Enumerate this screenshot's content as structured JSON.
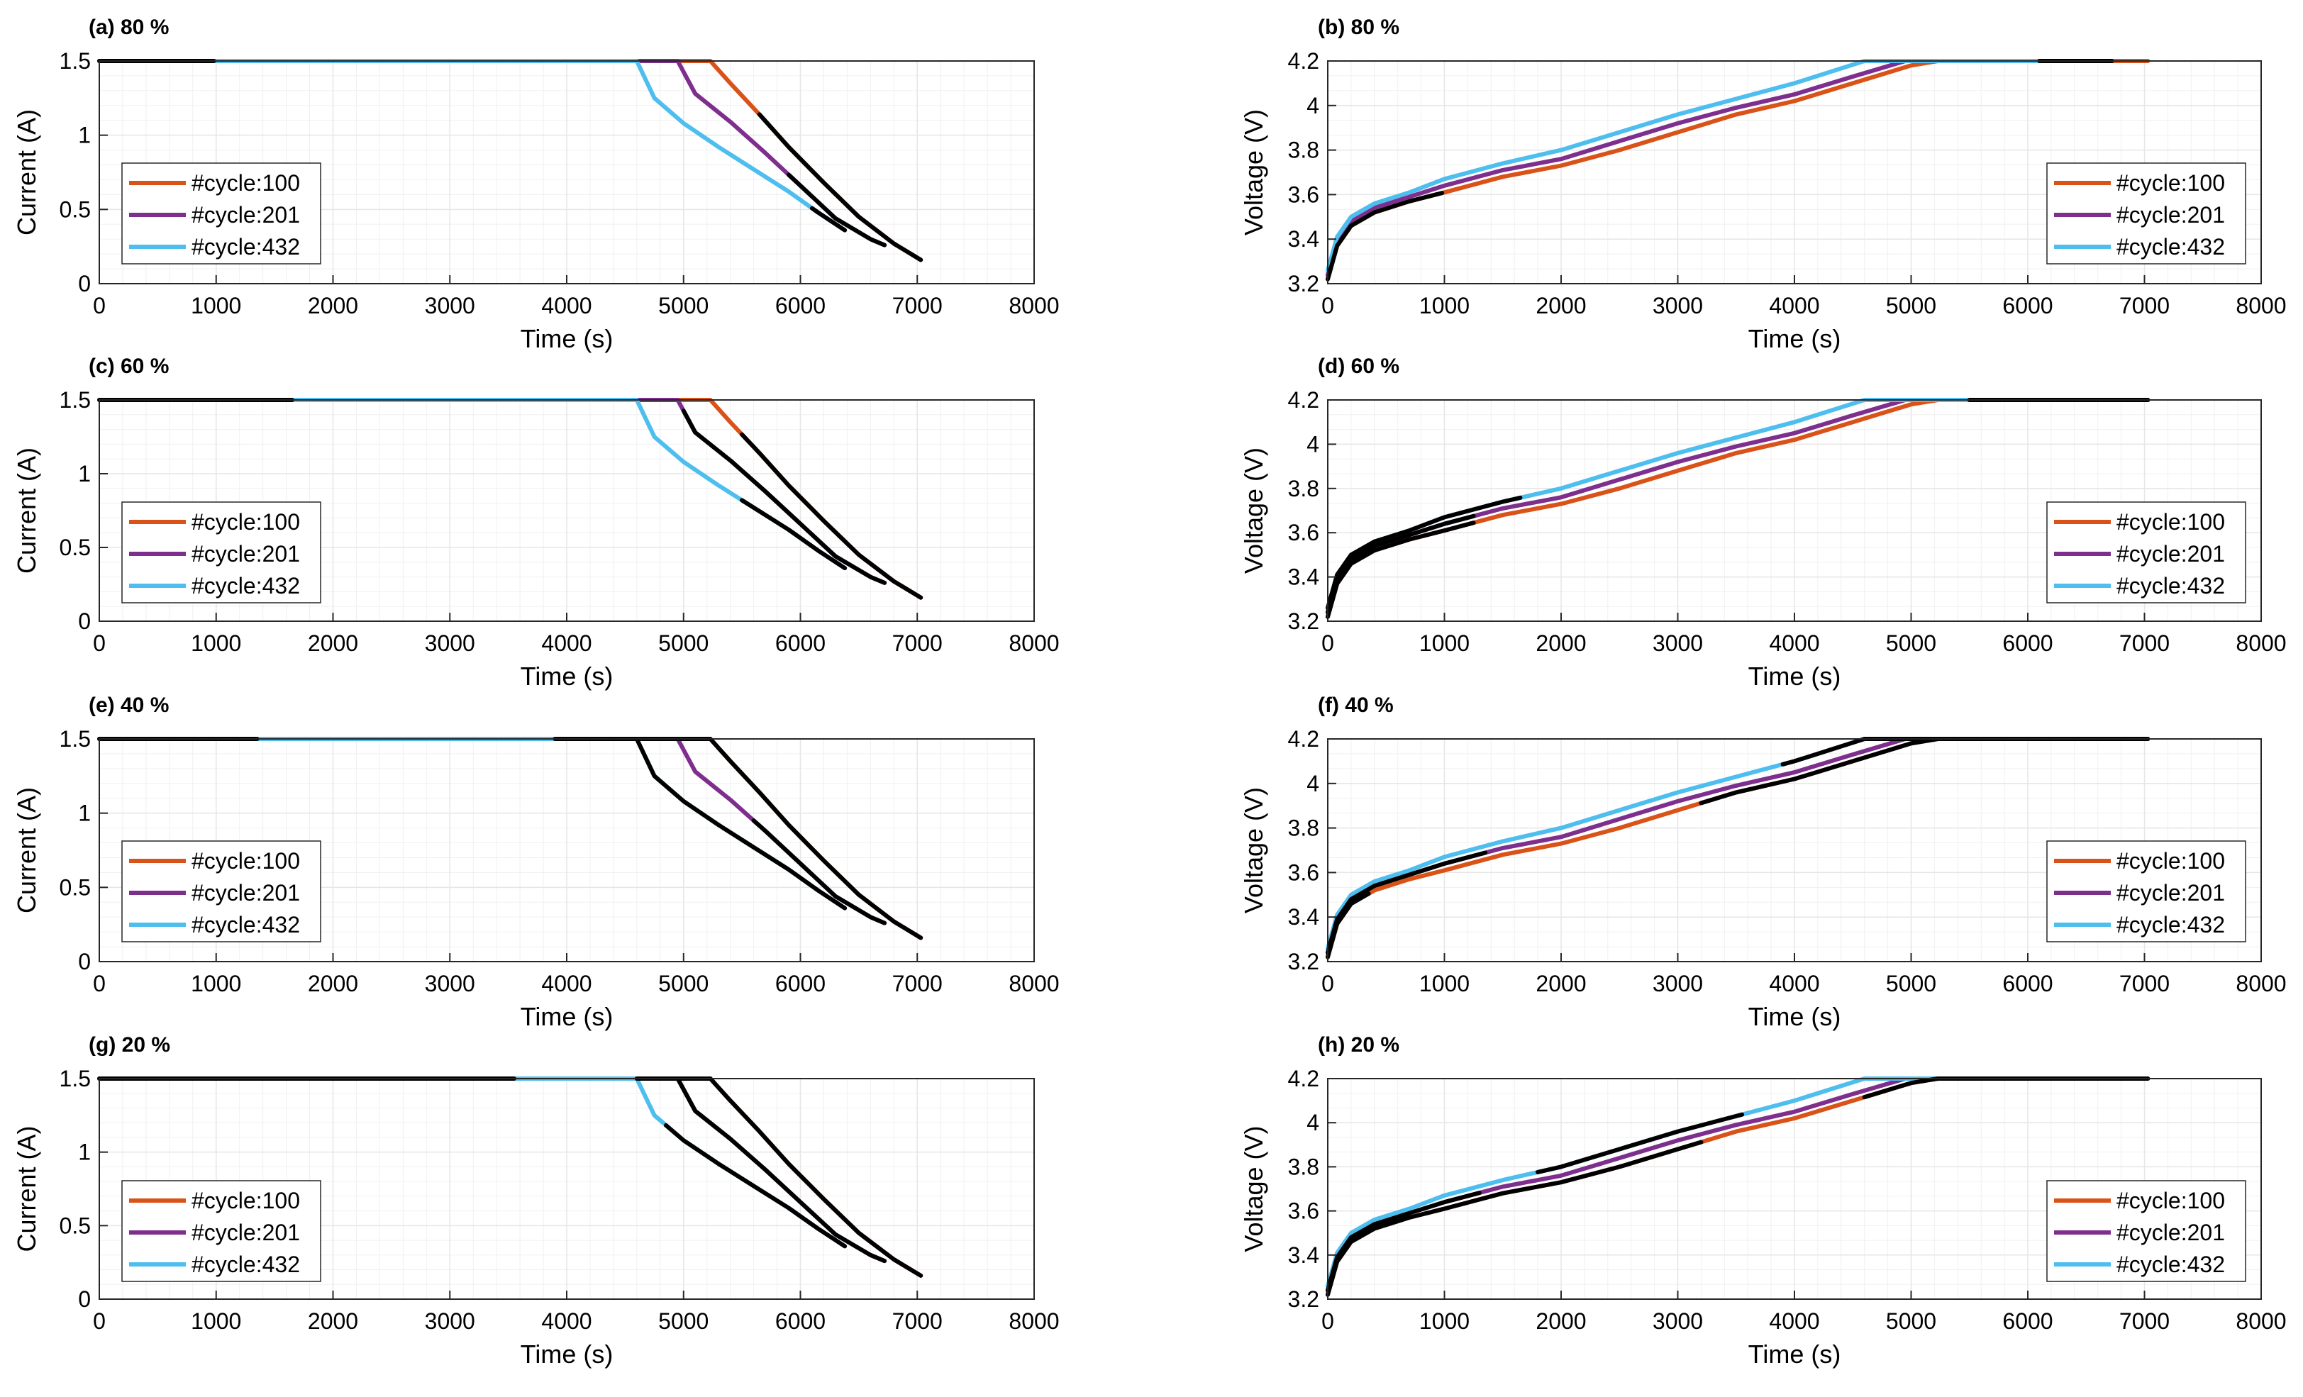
{
  "figure": {
    "legend_labels": [
      "#cycle:100",
      "#cycle:201",
      "#cycle:432"
    ],
    "colors": {
      "cycle100": "#D95319",
      "cycle201": "#7E2F8E",
      "cycle432": "#4DBEEE",
      "predicted": "#000000",
      "grid": "#e6e6e6",
      "axis": "#262626"
    }
  },
  "chart_data": [
    {
      "panel": "a",
      "title": "(a) 80 %",
      "type": "line",
      "xlabel": "Time (s)",
      "ylabel": "Current (A)",
      "xlim": [
        0,
        8000
      ],
      "ylim": [
        0,
        1.5
      ],
      "xticks": [
        0,
        1000,
        2000,
        3000,
        4000,
        5000,
        6000,
        7000,
        8000
      ],
      "yticks": [
        0,
        0.5,
        1,
        1.5
      ],
      "ytick_labels": [
        "0",
        "0.5",
        "1",
        "1.5"
      ],
      "legend": "center-left",
      "series": [
        {
          "name": "#cycle:100",
          "x": [
            0,
            5230,
            5400,
            5650,
            5900,
            6200,
            6500,
            6800,
            7030
          ],
          "y": [
            1.5,
            1.5,
            1.35,
            1.14,
            0.92,
            0.68,
            0.45,
            0.27,
            0.16
          ]
        },
        {
          "name": "#cycle:201",
          "x": [
            0,
            4950,
            5100,
            5400,
            5700,
            6000,
            6300,
            6600,
            6720
          ],
          "y": [
            1.5,
            1.5,
            1.28,
            1.09,
            0.88,
            0.66,
            0.44,
            0.3,
            0.26
          ]
        },
        {
          "name": "#cycle:432",
          "x": [
            0,
            4600,
            4750,
            5000,
            5300,
            5600,
            5900,
            6150,
            6380
          ],
          "y": [
            1.5,
            1.5,
            1.25,
            1.08,
            0.92,
            0.77,
            0.62,
            0.48,
            0.36
          ]
        }
      ],
      "predicted": [
        [
          0,
          980
        ],
        [
          5650,
          7030
        ],
        [
          5900,
          6720
        ],
        [
          6100,
          6380
        ]
      ]
    },
    {
      "panel": "b",
      "title": "(b) 80 %",
      "type": "line",
      "xlabel": "Time (s)",
      "ylabel": "Voltage (V)",
      "xlim": [
        0,
        8000
      ],
      "ylim": [
        3.2,
        4.2
      ],
      "xticks": [
        0,
        1000,
        2000,
        3000,
        4000,
        5000,
        6000,
        7000,
        8000
      ],
      "yticks": [
        3.2,
        3.4,
        3.6,
        3.8,
        4,
        4.2
      ],
      "ytick_labels": [
        "3.2",
        "3.4",
        "3.6",
        "3.8",
        "4",
        "4.2"
      ],
      "legend": "center-right",
      "series": [
        {
          "name": "#cycle:100",
          "x": [
            0,
            80,
            200,
            400,
            700,
            1000,
            1500,
            2000,
            2500,
            3000,
            3500,
            4000,
            4500,
            5000,
            5230,
            7030
          ],
          "y": [
            3.22,
            3.37,
            3.46,
            3.52,
            3.57,
            3.61,
            3.68,
            3.73,
            3.8,
            3.88,
            3.96,
            4.02,
            4.1,
            4.18,
            4.2,
            4.2
          ]
        },
        {
          "name": "#cycle:201",
          "x": [
            0,
            80,
            200,
            400,
            700,
            1000,
            1500,
            2000,
            2500,
            3000,
            3500,
            4000,
            4500,
            4950,
            6720
          ],
          "y": [
            3.24,
            3.39,
            3.48,
            3.54,
            3.59,
            3.64,
            3.71,
            3.76,
            3.84,
            3.92,
            3.99,
            4.05,
            4.13,
            4.2,
            4.2
          ]
        },
        {
          "name": "#cycle:432",
          "x": [
            0,
            80,
            200,
            400,
            700,
            1000,
            1500,
            2000,
            2500,
            3000,
            3500,
            4000,
            4600,
            6380
          ],
          "y": [
            3.26,
            3.41,
            3.5,
            3.56,
            3.61,
            3.67,
            3.74,
            3.8,
            3.88,
            3.96,
            4.03,
            4.1,
            4.2,
            4.2
          ]
        }
      ],
      "predicted": [
        [
          0,
          980
        ],
        [
          6100,
          6720
        ]
      ]
    },
    {
      "panel": "c",
      "title": "(c) 60 %",
      "type": "line",
      "xlabel": "Time (s)",
      "ylabel": "Current (A)",
      "xlim": [
        0,
        8000
      ],
      "ylim": [
        0,
        1.5
      ],
      "xticks": [
        0,
        1000,
        2000,
        3000,
        4000,
        5000,
        6000,
        7000,
        8000
      ],
      "yticks": [
        0,
        0.5,
        1,
        1.5
      ],
      "ytick_labels": [
        "0",
        "0.5",
        "1",
        "1.5"
      ],
      "legend": "center-left",
      "series": [
        {
          "name": "#cycle:100",
          "x": [
            0,
            5230,
            5400,
            5650,
            5900,
            6200,
            6500,
            6800,
            7030
          ],
          "y": [
            1.5,
            1.5,
            1.35,
            1.14,
            0.92,
            0.68,
            0.45,
            0.27,
            0.16
          ]
        },
        {
          "name": "#cycle:201",
          "x": [
            0,
            4950,
            5100,
            5400,
            5700,
            6000,
            6300,
            6600,
            6720
          ],
          "y": [
            1.5,
            1.5,
            1.28,
            1.09,
            0.88,
            0.66,
            0.44,
            0.3,
            0.26
          ]
        },
        {
          "name": "#cycle:432",
          "x": [
            0,
            4600,
            4750,
            5000,
            5300,
            5600,
            5900,
            6150,
            6380
          ],
          "y": [
            1.5,
            1.5,
            1.25,
            1.08,
            0.92,
            0.77,
            0.62,
            0.48,
            0.36
          ]
        }
      ],
      "predicted": [
        [
          0,
          1650
        ],
        [
          5500,
          7030
        ],
        [
          5000,
          6720
        ],
        [
          5500,
          6380
        ]
      ]
    },
    {
      "panel": "d",
      "title": "(d) 60 %",
      "type": "line",
      "xlabel": "Time (s)",
      "ylabel": "Voltage (V)",
      "xlim": [
        0,
        8000
      ],
      "ylim": [
        3.2,
        4.2
      ],
      "xticks": [
        0,
        1000,
        2000,
        3000,
        4000,
        5000,
        6000,
        7000,
        8000
      ],
      "yticks": [
        3.2,
        3.4,
        3.6,
        3.8,
        4,
        4.2
      ],
      "ytick_labels": [
        "3.2",
        "3.4",
        "3.6",
        "3.8",
        "4",
        "4.2"
      ],
      "legend": "center-right",
      "series": [
        {
          "name": "#cycle:100",
          "x": [
            0,
            80,
            200,
            400,
            700,
            1000,
            1500,
            2000,
            2500,
            3000,
            3500,
            4000,
            4500,
            5000,
            5230,
            7030
          ],
          "y": [
            3.22,
            3.37,
            3.46,
            3.52,
            3.57,
            3.61,
            3.68,
            3.73,
            3.8,
            3.88,
            3.96,
            4.02,
            4.1,
            4.18,
            4.2,
            4.2
          ]
        },
        {
          "name": "#cycle:201",
          "x": [
            0,
            80,
            200,
            400,
            700,
            1000,
            1500,
            2000,
            2500,
            3000,
            3500,
            4000,
            4500,
            4950,
            6720
          ],
          "y": [
            3.24,
            3.39,
            3.48,
            3.54,
            3.59,
            3.64,
            3.71,
            3.76,
            3.84,
            3.92,
            3.99,
            4.05,
            4.13,
            4.2,
            4.2
          ]
        },
        {
          "name": "#cycle:432",
          "x": [
            0,
            80,
            200,
            400,
            700,
            1000,
            1500,
            2000,
            2500,
            3000,
            3500,
            4000,
            4600,
            6380
          ],
          "y": [
            3.26,
            3.41,
            3.5,
            3.56,
            3.61,
            3.67,
            3.74,
            3.8,
            3.88,
            3.96,
            4.03,
            4.1,
            4.2,
            4.2
          ]
        }
      ],
      "predicted": [
        [
          0,
          1250
        ],
        [
          5500,
          7030
        ],
        [
          0,
          1250
        ],
        [
          0,
          1650
        ]
      ]
    },
    {
      "panel": "e",
      "title": "(e) 40 %",
      "type": "line",
      "xlabel": "Time (s)",
      "ylabel": "Current (A)",
      "xlim": [
        0,
        8000
      ],
      "ylim": [
        0,
        1.5
      ],
      "xticks": [
        0,
        1000,
        2000,
        3000,
        4000,
        5000,
        6000,
        7000,
        8000
      ],
      "yticks": [
        0,
        0.5,
        1,
        1.5
      ],
      "ytick_labels": [
        "0",
        "0.5",
        "1",
        "1.5"
      ],
      "legend": "center-left",
      "series": [
        {
          "name": "#cycle:100",
          "x": [
            0,
            5230,
            5400,
            5650,
            5900,
            6200,
            6500,
            6800,
            7030
          ],
          "y": [
            1.5,
            1.5,
            1.35,
            1.14,
            0.92,
            0.68,
            0.45,
            0.27,
            0.16
          ]
        },
        {
          "name": "#cycle:201",
          "x": [
            0,
            4950,
            5100,
            5400,
            5700,
            6000,
            6300,
            6600,
            6720
          ],
          "y": [
            1.5,
            1.5,
            1.28,
            1.09,
            0.88,
            0.66,
            0.44,
            0.3,
            0.26
          ]
        },
        {
          "name": "#cycle:432",
          "x": [
            0,
            4600,
            4750,
            5000,
            5300,
            5600,
            5900,
            6150,
            6380
          ],
          "y": [
            1.5,
            1.5,
            1.25,
            1.08,
            0.92,
            0.77,
            0.62,
            0.48,
            0.36
          ]
        }
      ],
      "predicted": [
        [
          0,
          1350
        ],
        [
          3900,
          7030
        ],
        [
          5600,
          6720
        ],
        [
          4600,
          6380
        ]
      ]
    },
    {
      "panel": "f",
      "title": "(f) 40 %",
      "type": "line",
      "xlabel": "Time (s)",
      "ylabel": "Voltage (V)",
      "xlim": [
        0,
        8000
      ],
      "ylim": [
        3.2,
        4.2
      ],
      "xticks": [
        0,
        1000,
        2000,
        3000,
        4000,
        5000,
        6000,
        7000,
        8000
      ],
      "yticks": [
        3.2,
        3.4,
        3.6,
        3.8,
        4,
        4.2
      ],
      "ytick_labels": [
        "3.2",
        "3.4",
        "3.6",
        "3.8",
        "4",
        "4.2"
      ],
      "legend": "center-right",
      "series": [
        {
          "name": "#cycle:100",
          "x": [
            0,
            80,
            200,
            400,
            700,
            1000,
            1500,
            2000,
            2500,
            3000,
            3500,
            4000,
            4500,
            5000,
            5230,
            7030
          ],
          "y": [
            3.22,
            3.37,
            3.46,
            3.52,
            3.57,
            3.61,
            3.68,
            3.73,
            3.8,
            3.88,
            3.96,
            4.02,
            4.1,
            4.18,
            4.2,
            4.2
          ]
        },
        {
          "name": "#cycle:201",
          "x": [
            0,
            80,
            200,
            400,
            700,
            1000,
            1500,
            2000,
            2500,
            3000,
            3500,
            4000,
            4500,
            4950,
            6720
          ],
          "y": [
            3.24,
            3.39,
            3.48,
            3.54,
            3.59,
            3.64,
            3.71,
            3.76,
            3.84,
            3.92,
            3.99,
            4.05,
            4.13,
            4.2,
            4.2
          ]
        },
        {
          "name": "#cycle:432",
          "x": [
            0,
            80,
            200,
            400,
            700,
            1000,
            1500,
            2000,
            2500,
            3000,
            3500,
            4000,
            4600,
            6380
          ],
          "y": [
            3.26,
            3.41,
            3.5,
            3.56,
            3.61,
            3.67,
            3.74,
            3.8,
            3.88,
            3.96,
            4.03,
            4.1,
            4.2,
            4.2
          ]
        }
      ],
      "predicted": [
        [
          0,
          350
        ],
        [
          3200,
          7030
        ],
        [
          0,
          1350
        ],
        [
          3900,
          6380
        ]
      ]
    },
    {
      "panel": "g",
      "title": "(g) 20 %",
      "type": "line",
      "xlabel": "Time (s)",
      "ylabel": "Current (A)",
      "xlim": [
        0,
        8000
      ],
      "ylim": [
        0,
        1.5
      ],
      "xticks": [
        0,
        1000,
        2000,
        3000,
        4000,
        5000,
        6000,
        7000,
        8000
      ],
      "yticks": [
        0,
        0.5,
        1,
        1.5
      ],
      "ytick_labels": [
        "0",
        "0.5",
        "1",
        "1.5"
      ],
      "legend": "center-left",
      "series": [
        {
          "name": "#cycle:100",
          "x": [
            0,
            5230,
            5400,
            5650,
            5900,
            6200,
            6500,
            6800,
            7030
          ],
          "y": [
            1.5,
            1.5,
            1.35,
            1.14,
            0.92,
            0.68,
            0.45,
            0.27,
            0.16
          ]
        },
        {
          "name": "#cycle:201",
          "x": [
            0,
            4950,
            5100,
            5400,
            5700,
            6000,
            6300,
            6600,
            6720
          ],
          "y": [
            1.5,
            1.5,
            1.28,
            1.09,
            0.88,
            0.66,
            0.44,
            0.3,
            0.26
          ]
        },
        {
          "name": "#cycle:432",
          "x": [
            0,
            4600,
            4750,
            5000,
            5300,
            5600,
            5900,
            6150,
            6380
          ],
          "y": [
            1.5,
            1.5,
            1.25,
            1.08,
            0.92,
            0.77,
            0.62,
            0.48,
            0.36
          ]
        }
      ],
      "predicted": [
        [
          0,
          3550
        ],
        [
          4600,
          7030
        ],
        [
          4850,
          6720
        ],
        [
          4850,
          6380
        ]
      ]
    },
    {
      "panel": "h",
      "title": "(h) 20 %",
      "type": "line",
      "xlabel": "Time (s)",
      "ylabel": "Voltage (V)",
      "xlim": [
        0,
        8000
      ],
      "ylim": [
        3.2,
        4.2
      ],
      "xticks": [
        0,
        1000,
        2000,
        3000,
        4000,
        5000,
        6000,
        7000,
        8000
      ],
      "yticks": [
        3.2,
        3.4,
        3.6,
        3.8,
        4,
        4.2
      ],
      "ytick_labels": [
        "3.2",
        "3.4",
        "3.6",
        "3.8",
        "4",
        "4.2"
      ],
      "legend": "center-right",
      "series": [
        {
          "name": "#cycle:100",
          "x": [
            0,
            80,
            200,
            400,
            700,
            1000,
            1500,
            2000,
            2500,
            3000,
            3500,
            4000,
            4500,
            5000,
            5230,
            7030
          ],
          "y": [
            3.22,
            3.37,
            3.46,
            3.52,
            3.57,
            3.61,
            3.68,
            3.73,
            3.8,
            3.88,
            3.96,
            4.02,
            4.1,
            4.18,
            4.2,
            4.2
          ]
        },
        {
          "name": "#cycle:201",
          "x": [
            0,
            80,
            200,
            400,
            700,
            1000,
            1500,
            2000,
            2500,
            3000,
            3500,
            4000,
            4500,
            4950,
            6720
          ],
          "y": [
            3.24,
            3.39,
            3.48,
            3.54,
            3.59,
            3.64,
            3.71,
            3.76,
            3.84,
            3.92,
            3.99,
            4.05,
            4.13,
            4.2,
            4.2
          ]
        },
        {
          "name": "#cycle:432",
          "x": [
            0,
            80,
            200,
            400,
            700,
            1000,
            1500,
            2000,
            2500,
            3000,
            3500,
            4000,
            4600,
            6380
          ],
          "y": [
            3.26,
            3.41,
            3.5,
            3.56,
            3.61,
            3.67,
            3.74,
            3.8,
            3.88,
            3.96,
            4.03,
            4.1,
            4.2,
            4.2
          ]
        }
      ],
      "predicted": [
        [
          0,
          3200
        ],
        [
          4600,
          7030
        ],
        [
          0,
          1300
        ],
        [
          1800,
          3550
        ]
      ]
    }
  ]
}
